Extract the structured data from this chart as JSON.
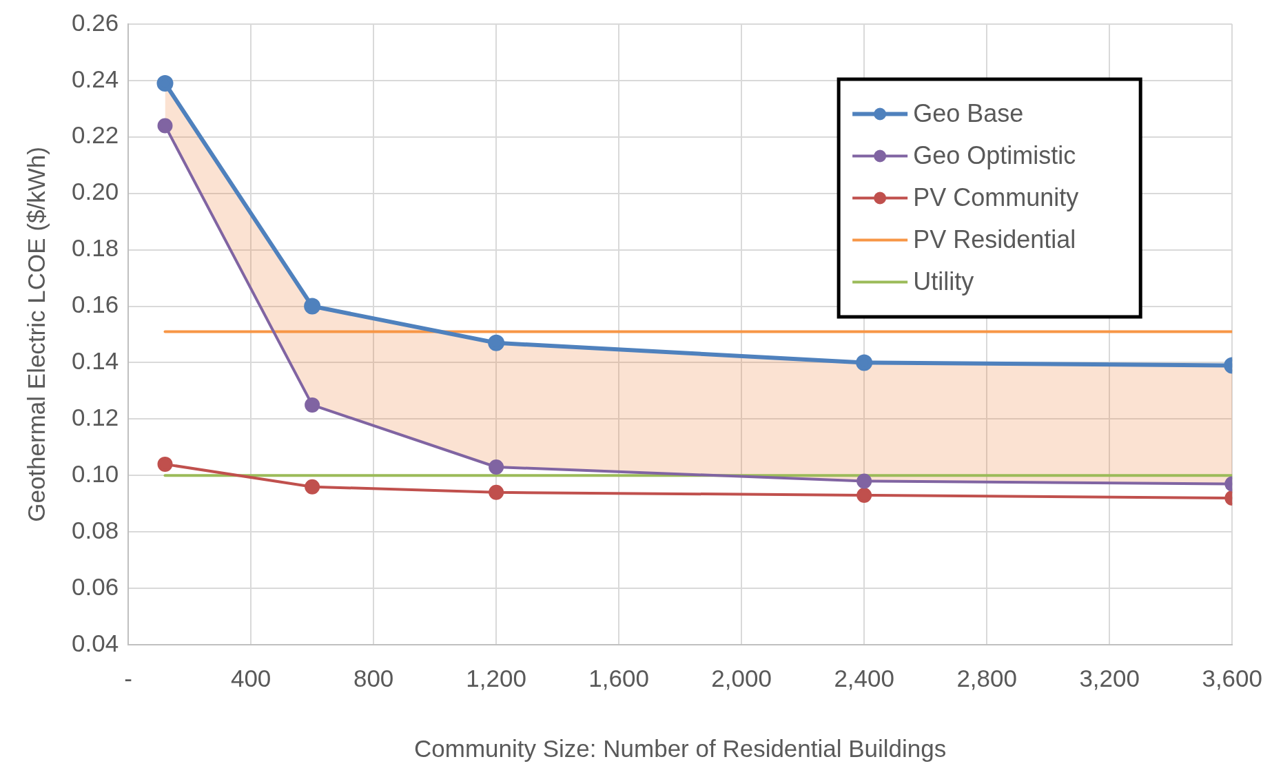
{
  "chart_data": {
    "type": "line",
    "xlabel": "Community Size: Number of Residential Buildings",
    "ylabel": "Geothermal Electric LCOE ($/kWh)",
    "xlim": [
      0,
      3600
    ],
    "xticks": [
      {
        "value": 0,
        "label": "-"
      },
      400,
      800,
      {
        "value": 1200,
        "label": "1,200"
      },
      {
        "value": 1600,
        "label": "1,600"
      },
      {
        "value": 2000,
        "label": "2,000"
      },
      {
        "value": 2400,
        "label": "2,400"
      },
      {
        "value": 2800,
        "label": "2,800"
      },
      {
        "value": 3200,
        "label": "3,200"
      },
      {
        "value": 3600,
        "label": "3,600"
      }
    ],
    "ylim": [
      0.04,
      0.26
    ],
    "yticks": [
      0.04,
      0.06,
      0.08,
      {
        "value": 0.1,
        "label": "0.10"
      },
      0.12,
      0.14,
      0.16,
      0.18,
      {
        "value": 0.2,
        "label": "0.20"
      },
      0.22,
      0.24,
      0.26
    ],
    "grid": true,
    "legend": "top right",
    "marker": "circle",
    "line_style": "solid",
    "series": [
      {
        "name": "Geo Base",
        "color": "#4f81bd",
        "x": [
          120,
          600,
          1200,
          2400,
          3600
        ],
        "values": [
          0.239,
          0.16,
          0.147,
          0.14,
          0.139
        ],
        "lower": [
          0.224,
          0.125,
          0.103,
          0.098,
          0.097
        ],
        "upper": [
          0.239,
          0.16,
          0.147,
          0.14,
          0.139
        ]
      },
      {
        "name": "Geo Optimistic",
        "color": "#8064a2",
        "x": [
          120,
          600,
          1200,
          2400,
          3600
        ],
        "values": [
          0.224,
          0.125,
          0.103,
          0.098,
          0.097
        ]
      },
      {
        "name": "PV Community",
        "color": "#c0504d",
        "x": [
          120,
          600,
          1200,
          2400,
          3600
        ],
        "values": [
          0.104,
          0.096,
          0.094,
          0.093,
          0.092
        ]
      },
      {
        "name": "PV Residential",
        "color": "#f79646",
        "x": [
          120,
          3600
        ],
        "values": [
          0.151,
          0.151
        ],
        "marker": "none"
      },
      {
        "name": "Utility",
        "color": "#9bbb59",
        "x": [
          120,
          3600
        ],
        "values": [
          0.1,
          0.1
        ],
        "marker": "none"
      }
    ]
  }
}
